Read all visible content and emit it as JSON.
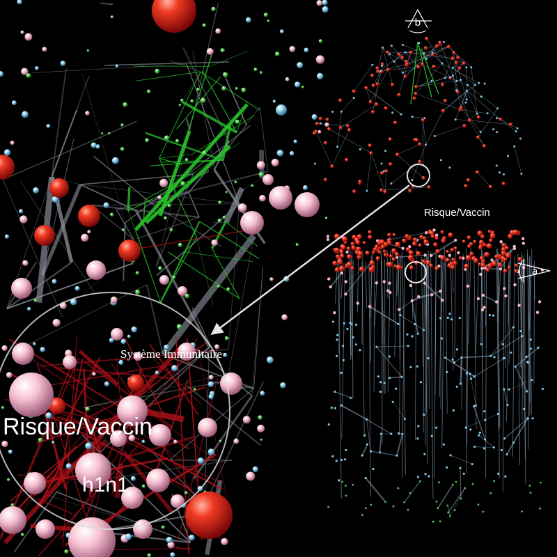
{
  "labels": {
    "systeme": "Système Immunitaire",
    "risque_big": "Risque/Vaccin",
    "h1n1": "h1n1",
    "risque_small": "Risque/Vaccin"
  },
  "views": {
    "a": "a",
    "b": "b"
  },
  "colors": {
    "background": "#000000",
    "edge_gray": "#8a8f99",
    "edge_green": "#27c22a",
    "edge_red": "#b0101a",
    "node_red": "#e8231e",
    "node_pink": "#f4b7c8",
    "node_blue": "#7fc6e8",
    "node_green": "#4ec64a",
    "net_blue": "#9fb8d0"
  }
}
